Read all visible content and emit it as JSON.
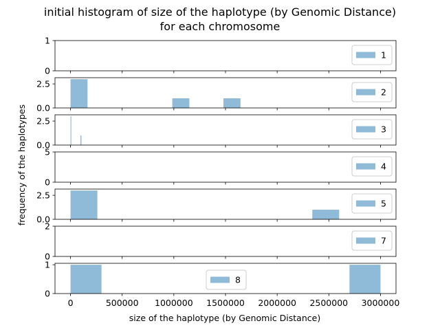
{
  "chart_data": {
    "type": "bar",
    "title_lines": [
      "initial histogram of size of the haplotype (by Genomic Distance)",
      "for each chromosome"
    ],
    "xlabel": "size of the haplotype (by Genomic Distance)",
    "ylabel": "frequency of the haplotypes",
    "xlim": [
      -150000,
      3150000
    ],
    "xticks": [
      0,
      500000,
      1000000,
      1500000,
      2000000,
      2500000,
      3000000
    ],
    "xtick_labels": [
      "0",
      "500000",
      "1000000",
      "1500000",
      "2000000",
      "2500000",
      "3000000"
    ],
    "bar_color": "#1f77b4",
    "bar_alpha": 0.5,
    "grid": false,
    "subplots": [
      {
        "legend": "1",
        "legend_position": "center-right",
        "ylim": [
          0,
          1
        ],
        "yticks": [
          0,
          1
        ],
        "ytick_labels": [
          "0",
          "1"
        ],
        "bars": []
      },
      {
        "legend": "2",
        "legend_position": "center-right",
        "ylim": [
          0,
          3.15
        ],
        "yticks": [
          0,
          2.5
        ],
        "ytick_labels": [
          "0.0",
          "2.5"
        ],
        "bars": [
          {
            "x0": 0,
            "x1": 165000,
            "count": 3
          },
          {
            "x0": 985000,
            "x1": 1150000,
            "count": 1
          },
          {
            "x0": 1480000,
            "x1": 1645000,
            "count": 1
          }
        ]
      },
      {
        "legend": "3",
        "legend_position": "center-right",
        "ylim": [
          0,
          3.15
        ],
        "yticks": [
          0,
          2.5
        ],
        "ytick_labels": [
          "0.0",
          "2.5"
        ],
        "bars": [
          {
            "x0": 0,
            "x1": 8000,
            "count": 3
          },
          {
            "x0": 96000,
            "x1": 106000,
            "count": 1
          }
        ]
      },
      {
        "legend": "4",
        "legend_position": "center-right",
        "ylim": [
          0,
          5
        ],
        "yticks": [
          0,
          5
        ],
        "ytick_labels": [
          "0",
          "5"
        ],
        "bars": []
      },
      {
        "legend": "5",
        "legend_position": "center-right",
        "ylim": [
          0,
          3.15
        ],
        "yticks": [
          0,
          2.5
        ],
        "ytick_labels": [
          "0.0",
          "2.5"
        ],
        "bars": [
          {
            "x0": 0,
            "x1": 260000,
            "count": 3
          },
          {
            "x0": 2340000,
            "x1": 2600000,
            "count": 1
          }
        ]
      },
      {
        "legend": "7",
        "legend_position": "center-right",
        "ylim": [
          0,
          2
        ],
        "yticks": [
          0,
          2
        ],
        "ytick_labels": [
          "0",
          "2"
        ],
        "bars": []
      },
      {
        "legend": "8",
        "legend_position": "lower-center",
        "ylim": [
          0,
          1.05
        ],
        "yticks": [
          0,
          1
        ],
        "ytick_labels": [
          "0",
          "1"
        ],
        "bars": [
          {
            "x0": 0,
            "x1": 300000,
            "count": 1
          },
          {
            "x0": 2700000,
            "x1": 3000000,
            "count": 1
          }
        ]
      }
    ]
  }
}
